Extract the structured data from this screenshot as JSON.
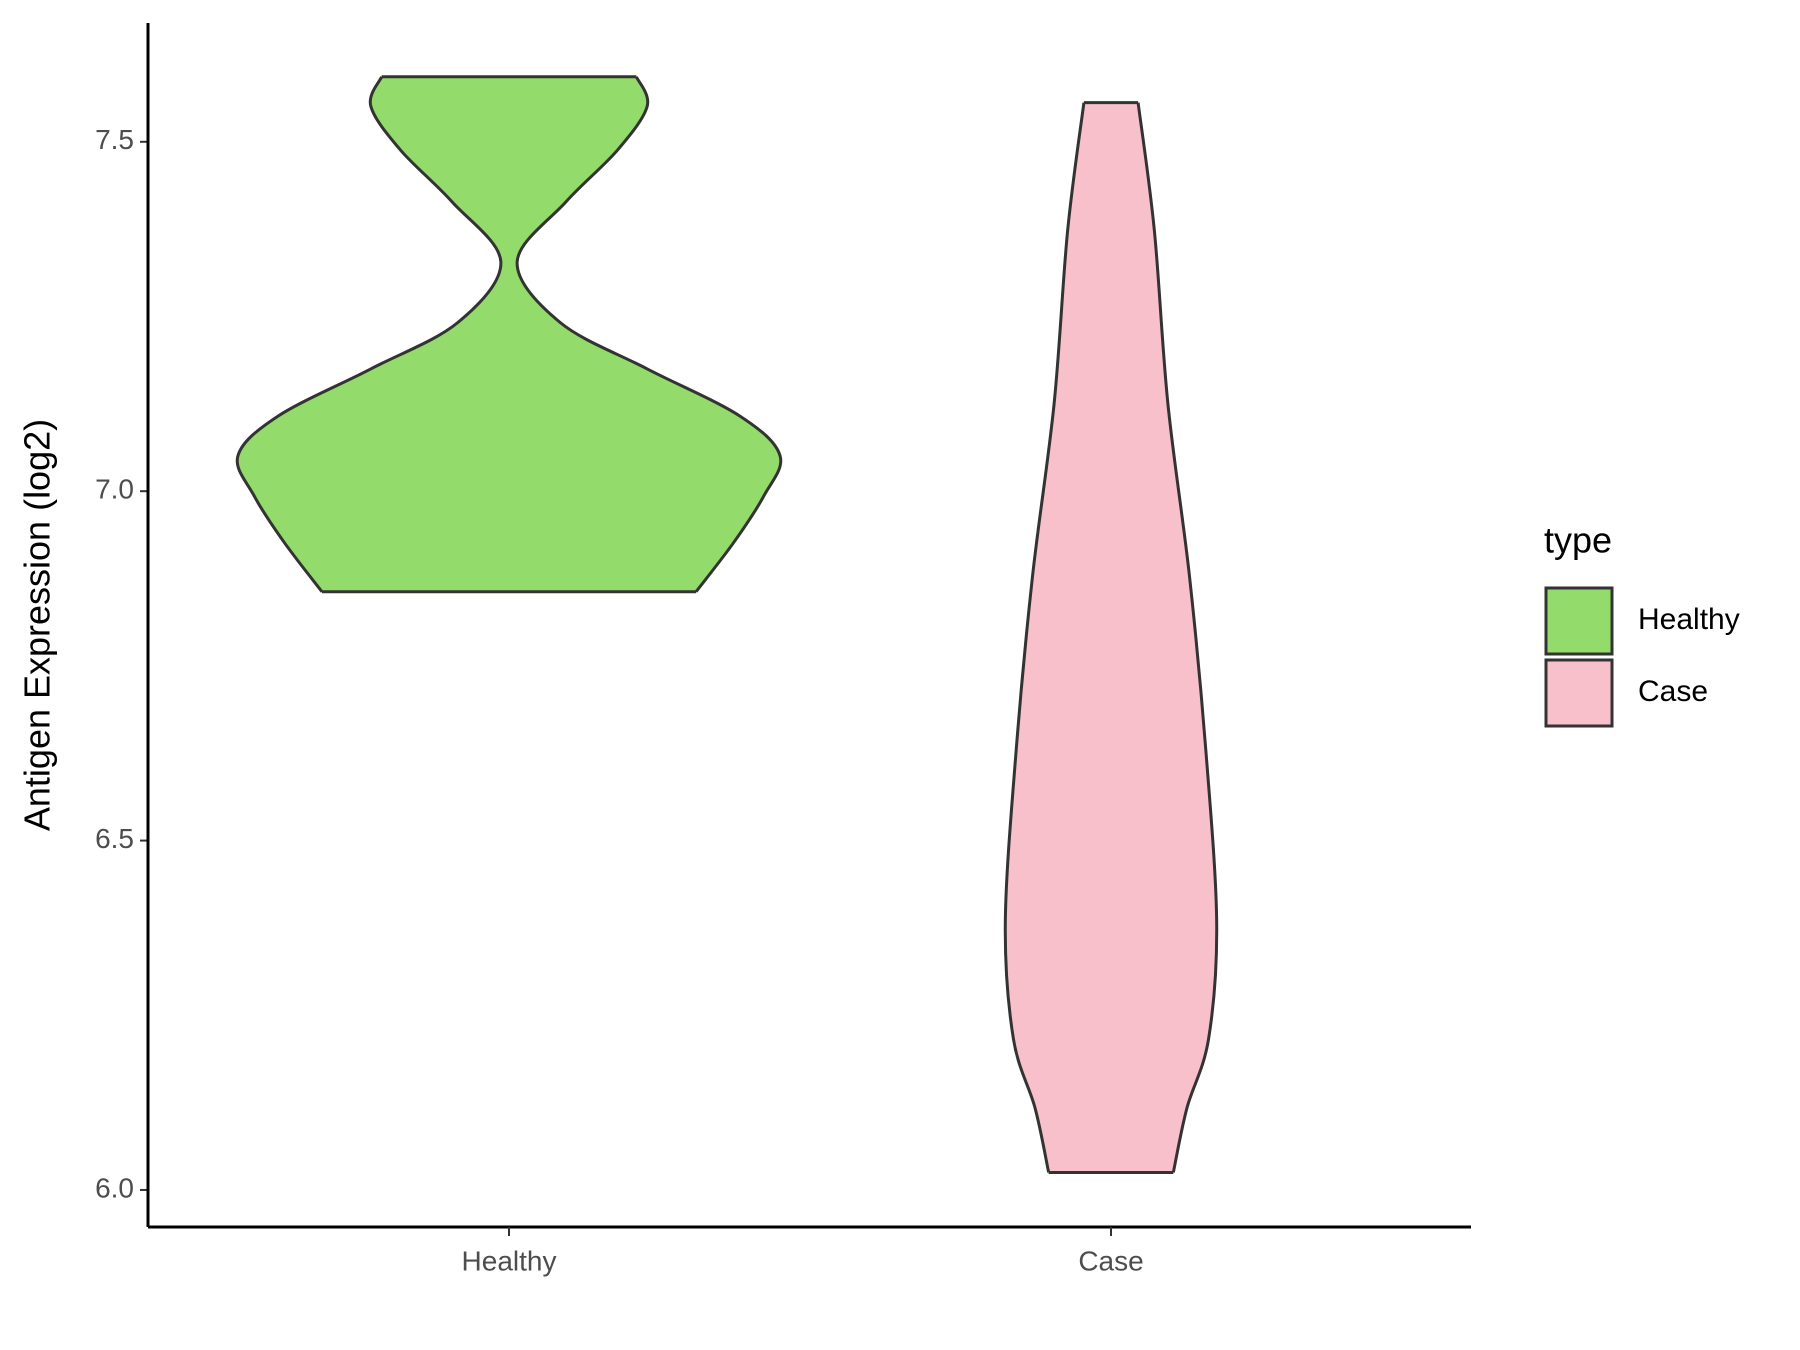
{
  "chart_data": {
    "type": "violin",
    "y_label": "Antigen Expression (log2)",
    "categories": [
      "Healthy",
      "Case"
    ],
    "series": [
      {
        "name": "Healthy",
        "color": "#93db6a",
        "values": [
          7.593,
          7.551,
          7.488,
          7.414,
          7.328,
          7.241,
          7.175,
          7.108,
          7.051,
          6.993,
          6.927,
          6.856
        ],
        "density": [
          0.47,
          0.51,
          0.4,
          0.21,
          0.03,
          0.19,
          0.51,
          0.85,
          1.0,
          0.94,
          0.83,
          0.69
        ]
      },
      {
        "name": "Case",
        "color": "#f7c0cb",
        "values": [
          7.556,
          7.373,
          7.125,
          6.877,
          6.629,
          6.382,
          6.216,
          6.117,
          6.025
        ],
        "density": [
          0.1,
          0.16,
          0.21,
          0.29,
          0.35,
          0.39,
          0.36,
          0.28,
          0.23
        ]
      }
    ],
    "ylim": [
      5.947,
      7.67
    ],
    "yticks": [
      {
        "value": 6,
        "label": "6.0"
      },
      6.5,
      {
        "value": 7,
        "label": "7.0"
      },
      7.5
    ],
    "legend_title": "type",
    "legend_position": "right"
  }
}
